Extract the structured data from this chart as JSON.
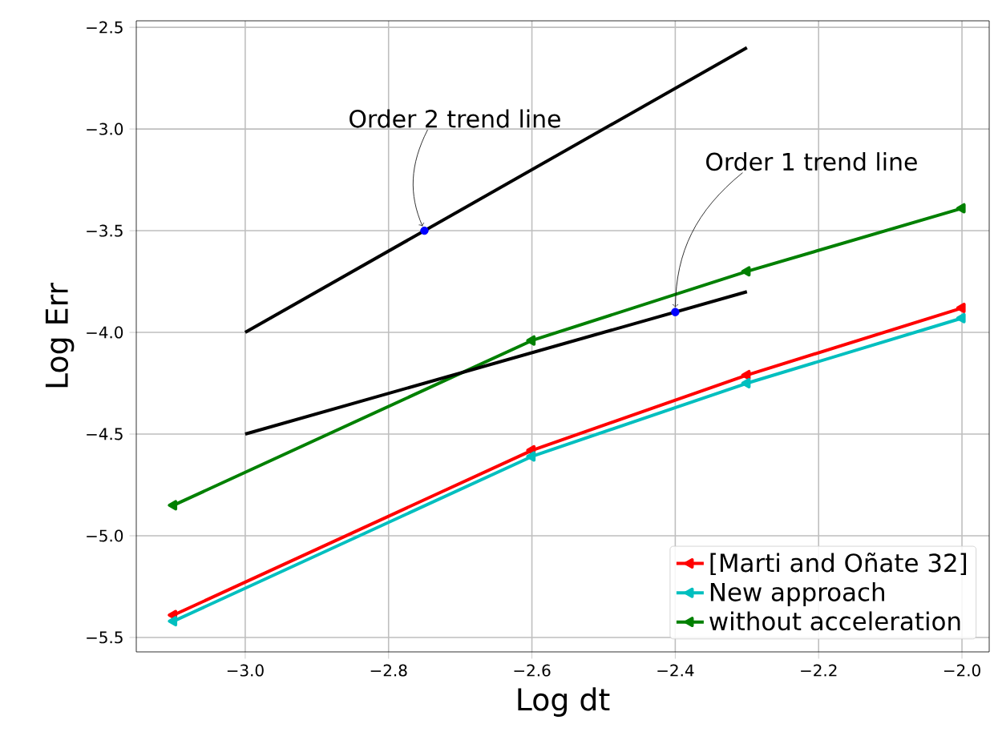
{
  "chart_data": {
    "type": "line",
    "xlabel": "Log dt",
    "ylabel": "Log Err",
    "xlim": [
      -3.152,
      -1.962
    ],
    "ylim": [
      -5.571,
      -2.468
    ],
    "xticks": [
      {
        "value": -3.0,
        "label": "−3.0"
      },
      {
        "value": -2.8,
        "label": "−2.8"
      },
      {
        "value": -2.6,
        "label": "−2.6"
      },
      {
        "value": -2.4,
        "label": "−2.4"
      },
      {
        "value": -2.2,
        "label": "−2.2"
      },
      {
        "value": -2.0,
        "label": "−2.0"
      }
    ],
    "yticks": [
      {
        "value": -5.5,
        "label": "−5.5"
      },
      {
        "value": -5.0,
        "label": "−5.0"
      },
      {
        "value": -4.5,
        "label": "−4.5"
      },
      {
        "value": -4.0,
        "label": "−4.0"
      },
      {
        "value": -3.5,
        "label": "−3.5"
      },
      {
        "value": -3.0,
        "label": "−3.0"
      },
      {
        "value": -2.5,
        "label": "−2.5"
      }
    ],
    "x": [
      -3.1,
      -2.6,
      -2.3,
      -2.0
    ],
    "series": [
      {
        "name": "[Marti and Oñate 32]",
        "color": "#ff0000",
        "marker": "triangle",
        "values": [
          -5.39,
          -4.58,
          -4.21,
          -3.88
        ]
      },
      {
        "name": "New approach",
        "color": "#00bfbf",
        "marker": "triangle",
        "values": [
          -5.42,
          -4.61,
          -4.25,
          -3.93
        ]
      },
      {
        "name": "without acceleration",
        "color": "#008000",
        "marker": "triangle",
        "values": [
          -4.85,
          -4.04,
          -3.7,
          -3.39
        ]
      },
      {
        "type": "line",
        "color": "#000000",
        "x": [
          -3.0,
          -2.3
        ],
        "values": [
          -4.0,
          -2.6
        ]
      },
      {
        "type": "line",
        "color": "#000000",
        "x": [
          -3.0,
          -2.3
        ],
        "values": [
          -4.5,
          -3.8
        ]
      },
      {
        "type": "scatter",
        "color": "#0000ff",
        "marker": "circle",
        "x": [
          -2.75,
          -2.4
        ],
        "values": [
          -3.5,
          -3.9
        ]
      }
    ],
    "annotations": [
      {
        "text": "Order 2 trend line",
        "x": -2.75,
        "y": -3.5
      },
      {
        "text": "Order 1 trend line",
        "x": -2.4,
        "y": -3.9
      }
    ],
    "grid": true,
    "legend": "bottom right"
  }
}
